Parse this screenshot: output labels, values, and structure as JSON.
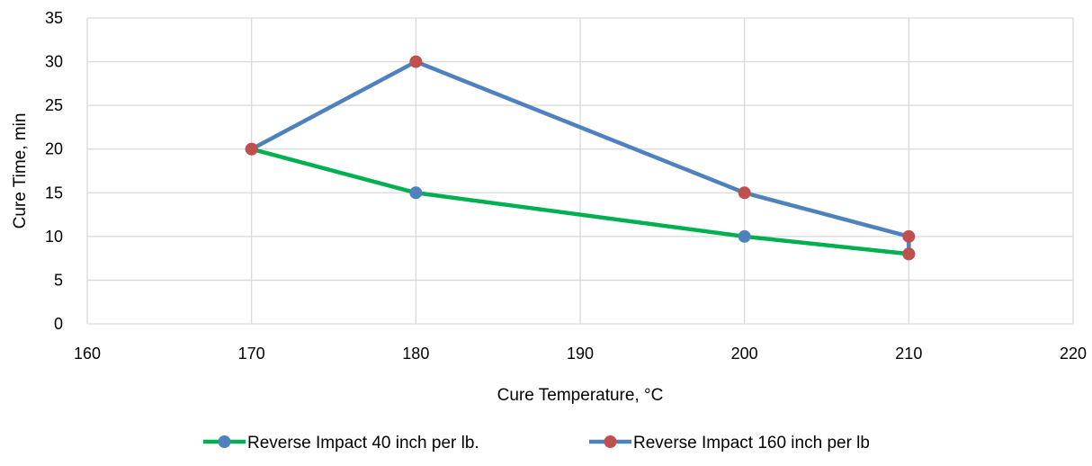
{
  "chart_data": {
    "type": "line",
    "title": "",
    "xlabel": "Cure Temperature, °C",
    "ylabel": "Cure Time, min",
    "xlim": [
      160,
      220
    ],
    "ylim": [
      0,
      35
    ],
    "x_ticks": [
      160,
      170,
      180,
      190,
      200,
      210,
      220
    ],
    "y_ticks": [
      0,
      5,
      10,
      15,
      20,
      25,
      30,
      35
    ],
    "grid": true,
    "legend_position": "bottom",
    "series": [
      {
        "name": "Reverse Impact 40 inch per lb.",
        "line_color": "#00B050",
        "marker_color": "#4F81BD",
        "x": [
          170,
          180,
          200,
          210
        ],
        "y": [
          20,
          15,
          10,
          8
        ]
      },
      {
        "name": "Reverse Impact 160 inch per lb",
        "line_color": "#4F81BD",
        "marker_color": "#C0504D",
        "x": [
          170,
          180,
          200,
          210,
          210
        ],
        "y": [
          20,
          30,
          15,
          10,
          8
        ]
      }
    ]
  }
}
